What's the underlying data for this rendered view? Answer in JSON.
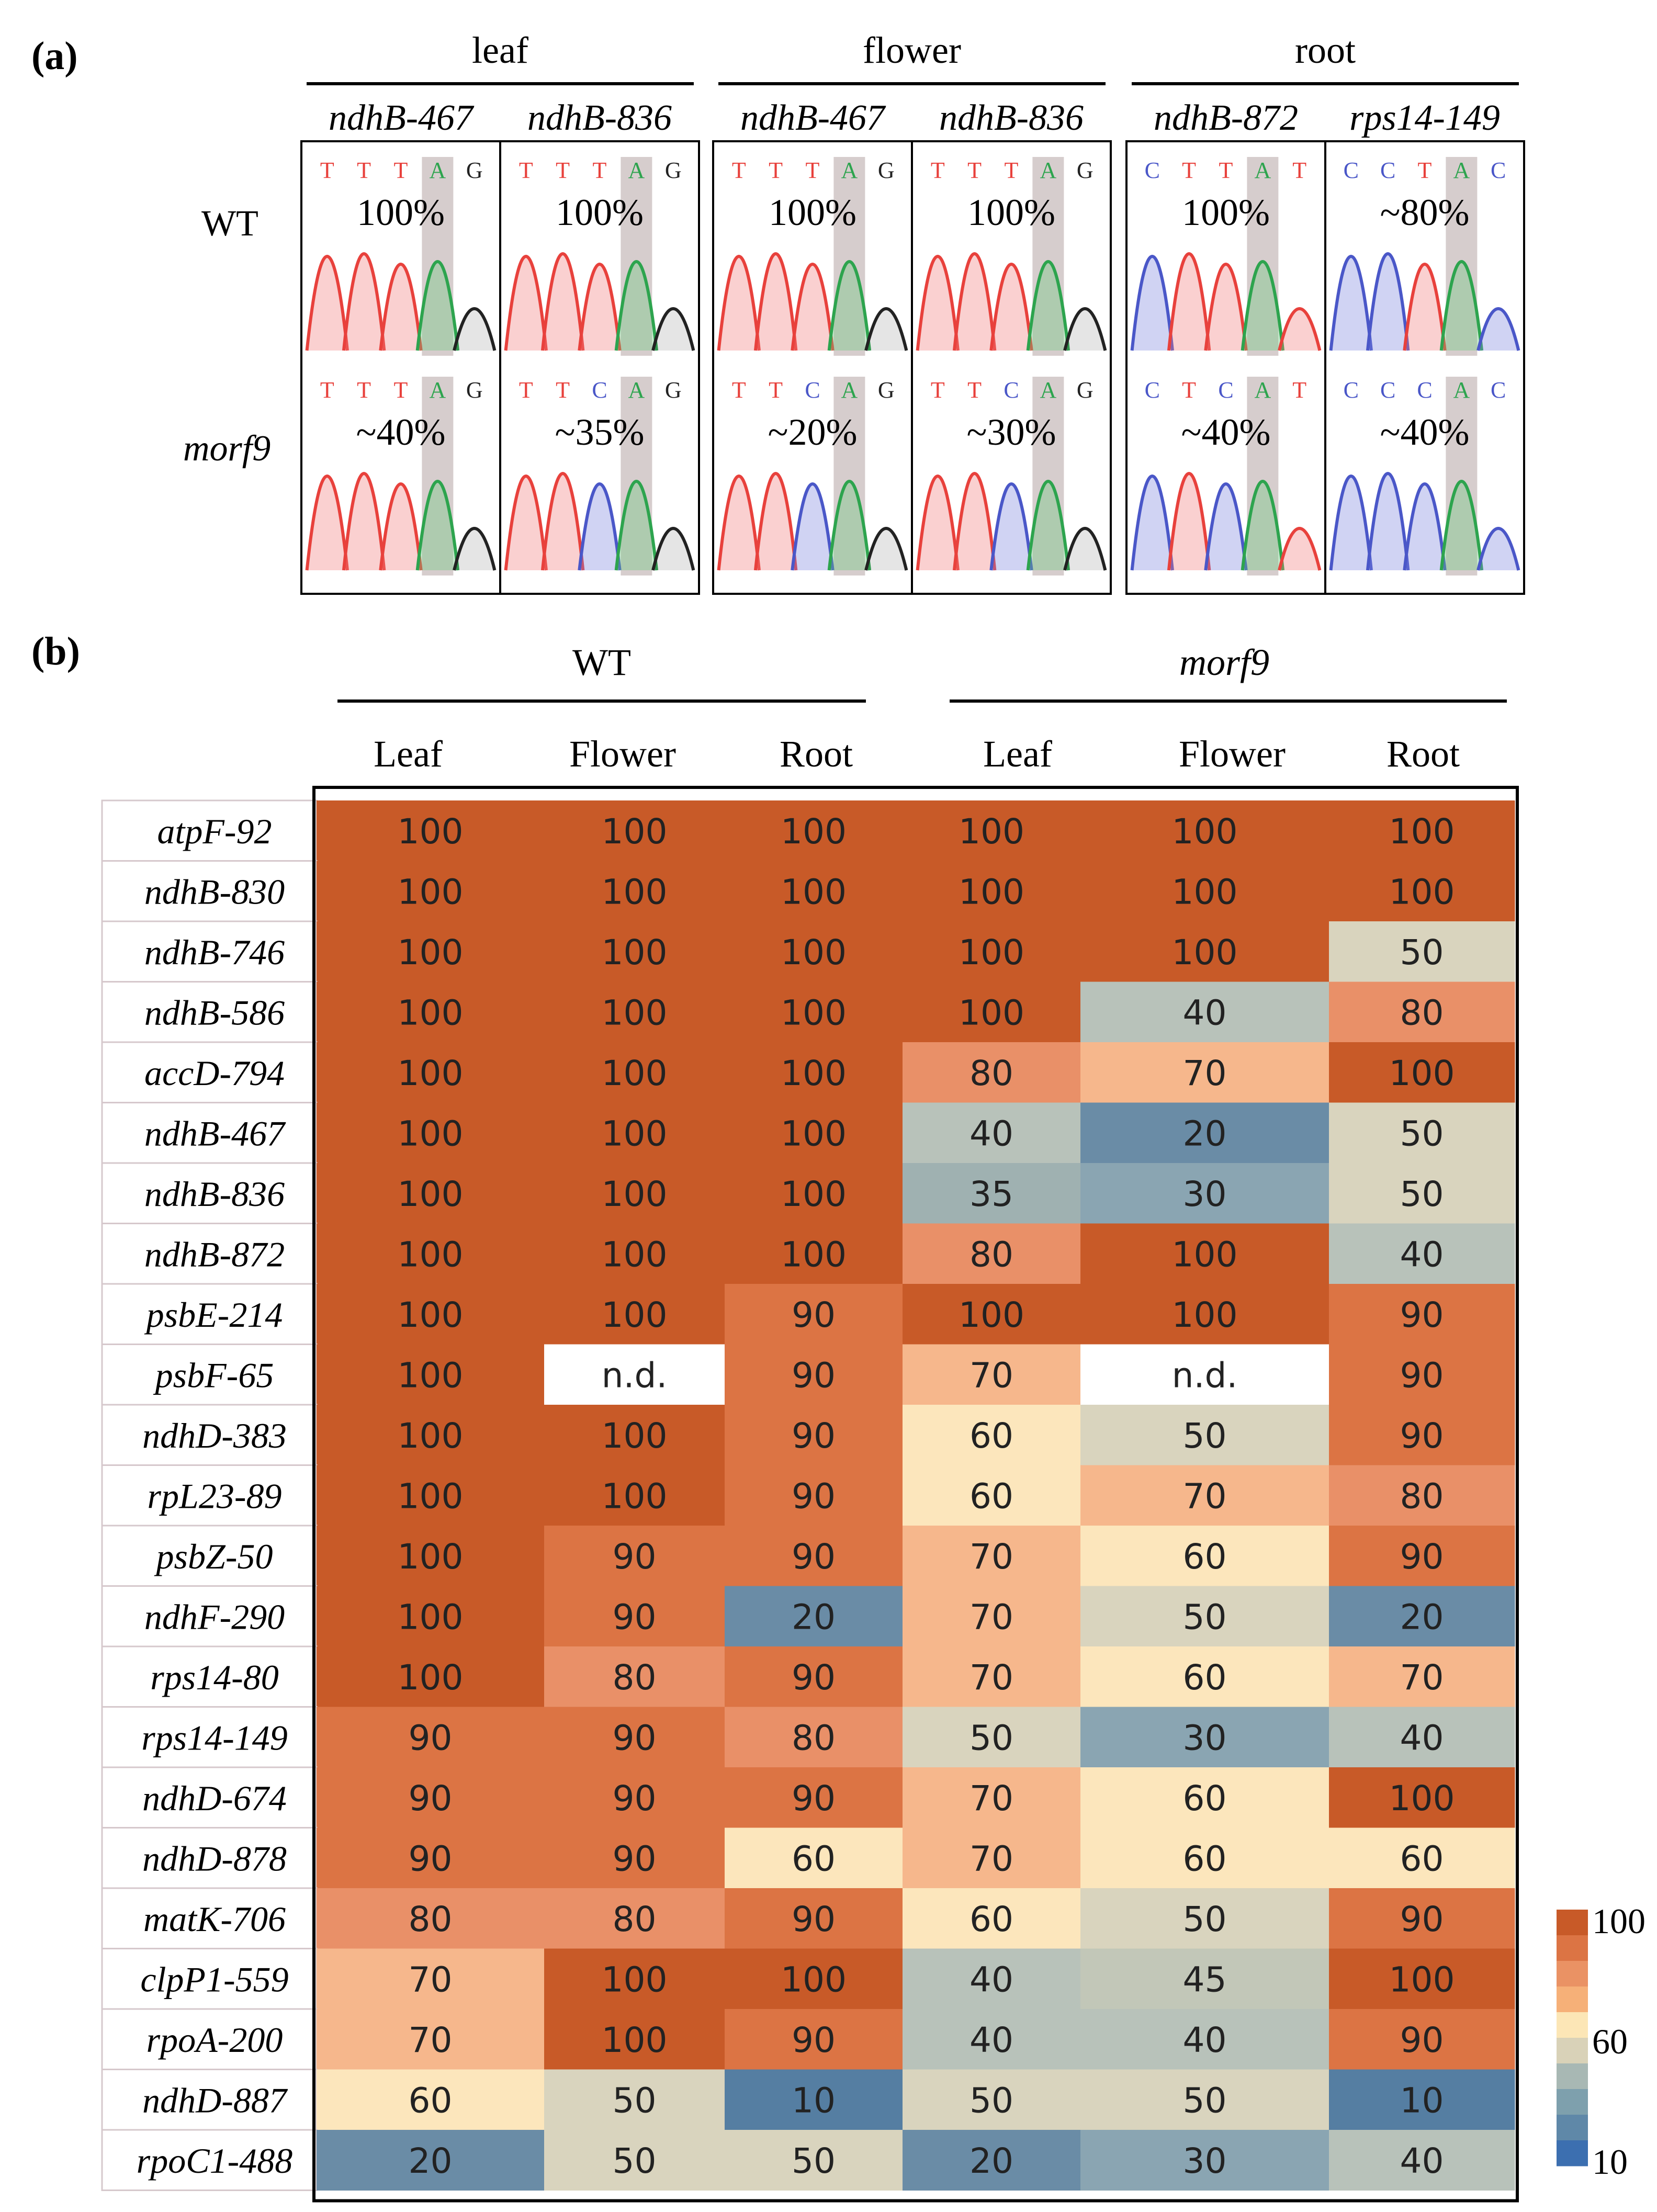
{
  "panel_a": {
    "label": "(a)",
    "tissues": [
      {
        "name": "leaf",
        "sites": [
          "ndhB-467",
          "ndhB-836"
        ]
      },
      {
        "name": "flower",
        "sites": [
          "ndhB-467",
          "ndhB-836"
        ]
      },
      {
        "name": "root",
        "sites": [
          "ndhB-872",
          "rps14-149"
        ]
      }
    ],
    "rows": [
      "WT",
      "morf9"
    ],
    "wt_seqs": [
      "TTTAG",
      "TTTAG",
      "TTTAG",
      "TTTAG",
      "CTTAT",
      "CCTAC"
    ],
    "morf9_seqs": [
      "TTTAG",
      "TTCAG",
      "TTCAG",
      "TTCAG",
      "CTCAT",
      "CCCAC"
    ],
    "wt_pct": [
      "100%",
      "100%",
      "100%",
      "100%",
      "100%",
      "~80%"
    ],
    "morf9_pct": [
      "~40%",
      "~35%",
      "~20%",
      "~30%",
      "~40%",
      "~40%"
    ]
  },
  "chart_data": {
    "type": "heatmap",
    "title": "(b)",
    "groups": [
      {
        "name": "WT",
        "columns": [
          "Leaf",
          "Flower",
          "Root"
        ]
      },
      {
        "name": "morf9",
        "columns": [
          "Leaf",
          "Flower",
          "Root"
        ]
      }
    ],
    "rows": [
      "atpF-92",
      "ndhB-830",
      "ndhB-746",
      "ndhB-586",
      "accD-794",
      "ndhB-467",
      "ndhB-836",
      "ndhB-872",
      "psbE-214",
      "psbF-65",
      "ndhD-383",
      "rpL23-89",
      "psbZ-50",
      "ndhF-290",
      "rps14-80",
      "rps14-149",
      "ndhD-674",
      "ndhD-878",
      "matK-706",
      "clpP1-559",
      "rpoA-200",
      "ndhD-887",
      "rpoC1-488"
    ],
    "values": [
      [
        100,
        100,
        100,
        100,
        100,
        100
      ],
      [
        100,
        100,
        100,
        100,
        100,
        100
      ],
      [
        100,
        100,
        100,
        100,
        100,
        50
      ],
      [
        100,
        100,
        100,
        100,
        40,
        80
      ],
      [
        100,
        100,
        100,
        80,
        70,
        100
      ],
      [
        100,
        100,
        100,
        40,
        20,
        50
      ],
      [
        100,
        100,
        100,
        35,
        30,
        50
      ],
      [
        100,
        100,
        100,
        80,
        100,
        40
      ],
      [
        100,
        100,
        90,
        100,
        100,
        90
      ],
      [
        100,
        "n.d.",
        90,
        70,
        "n.d.",
        90
      ],
      [
        100,
        100,
        90,
        60,
        50,
        90
      ],
      [
        100,
        100,
        90,
        60,
        70,
        80
      ],
      [
        100,
        90,
        90,
        70,
        60,
        90
      ],
      [
        100,
        90,
        20,
        70,
        50,
        20
      ],
      [
        100,
        80,
        90,
        70,
        60,
        70
      ],
      [
        90,
        90,
        80,
        50,
        30,
        40
      ],
      [
        90,
        90,
        90,
        70,
        60,
        100
      ],
      [
        90,
        90,
        60,
        70,
        60,
        60
      ],
      [
        80,
        80,
        90,
        60,
        50,
        90
      ],
      [
        70,
        100,
        100,
        40,
        45,
        100
      ],
      [
        70,
        100,
        90,
        40,
        40,
        90
      ],
      [
        60,
        50,
        10,
        50,
        50,
        10
      ],
      [
        20,
        50,
        50,
        20,
        30,
        40
      ]
    ],
    "colors": {
      "100": "#c85a28",
      "90": "#dc7444",
      "80": "#e99068",
      "70": "#f6b78c",
      "60": "#fce6bc",
      "50": "#d9d4be",
      "45": "#c2c7b8",
      "40": "#b8c2ba",
      "35": "#9fb1b1",
      "30": "#8aa5b2",
      "20": "#6a8ca6",
      "10": "#557ea2",
      "nd": "#ffffff"
    },
    "legend": {
      "tick_labels": [
        "100",
        "60",
        "10"
      ],
      "colors": [
        "#c85a28",
        "#dc7444",
        "#ea9264",
        "#f6b078",
        "#fce6b6",
        "#d9d2b8",
        "#a8b8b4",
        "#7ea0ad",
        "#5f88a8",
        "#3c6fb0"
      ]
    }
  }
}
